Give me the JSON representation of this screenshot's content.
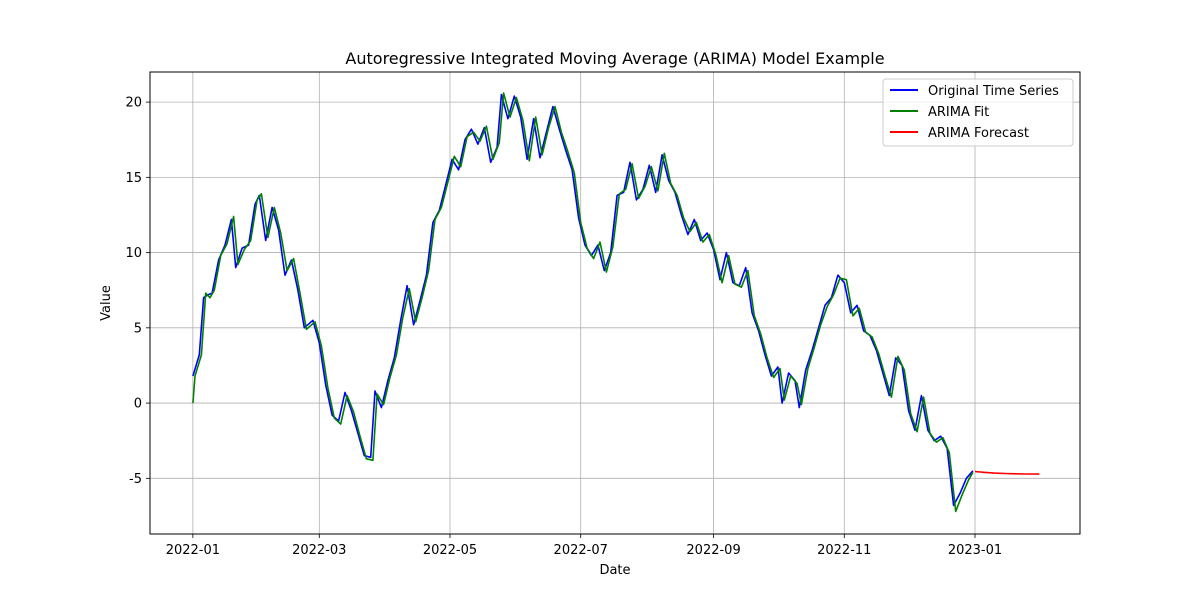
{
  "chart_data": {
    "type": "line",
    "title": "Autoregressive Integrated Moving Average (ARIMA) Model Example",
    "xlabel": "Date",
    "ylabel": "Value",
    "x_tick_labels": [
      "2022-01",
      "2022-03",
      "2022-05",
      "2022-07",
      "2022-09",
      "2022-11",
      "2023-01"
    ],
    "x_tick_dates": [
      "2022-01-01",
      "2022-03-01",
      "2022-05-01",
      "2022-07-01",
      "2022-09-01",
      "2022-11-01",
      "2023-01-01"
    ],
    "y_ticks": [
      -5,
      0,
      5,
      10,
      15,
      20
    ],
    "xlim": [
      "2021-12-12",
      "2023-02-19"
    ],
    "ylim": [
      -8.7,
      22.0
    ],
    "grid": true,
    "legend_position": "top-right",
    "series": [
      {
        "name": "Original Time Series",
        "color": "#0000ff",
        "points": [
          [
            "2022-01-01",
            1.8
          ],
          [
            "2022-01-04",
            3.2
          ],
          [
            "2022-01-06",
            7.0
          ],
          [
            "2022-01-08",
            7.2
          ],
          [
            "2022-01-10",
            7.3
          ],
          [
            "2022-01-13",
            9.5
          ],
          [
            "2022-01-16",
            10.5
          ],
          [
            "2022-01-19",
            12.2
          ],
          [
            "2022-01-21",
            9.0
          ],
          [
            "2022-01-24",
            10.3
          ],
          [
            "2022-01-27",
            10.5
          ],
          [
            "2022-01-30",
            13.2
          ],
          [
            "2022-02-01",
            13.8
          ],
          [
            "2022-02-04",
            10.8
          ],
          [
            "2022-02-07",
            13.0
          ],
          [
            "2022-02-10",
            11.5
          ],
          [
            "2022-02-13",
            8.5
          ],
          [
            "2022-02-16",
            9.5
          ],
          [
            "2022-02-19",
            7.5
          ],
          [
            "2022-02-22",
            5.0
          ],
          [
            "2022-02-26",
            5.5
          ],
          [
            "2022-03-01",
            4.0
          ],
          [
            "2022-03-04",
            1.2
          ],
          [
            "2022-03-07",
            -0.8
          ],
          [
            "2022-03-10",
            -1.2
          ],
          [
            "2022-03-13",
            0.7
          ],
          [
            "2022-03-16",
            -0.5
          ],
          [
            "2022-03-19",
            -2.0
          ],
          [
            "2022-03-22",
            -3.5
          ],
          [
            "2022-03-25",
            -3.6
          ],
          [
            "2022-03-27",
            0.8
          ],
          [
            "2022-03-30",
            -0.3
          ],
          [
            "2022-04-02",
            1.5
          ],
          [
            "2022-04-05",
            3.0
          ],
          [
            "2022-04-08",
            5.5
          ],
          [
            "2022-04-11",
            7.8
          ],
          [
            "2022-04-14",
            5.2
          ],
          [
            "2022-04-17",
            6.8
          ],
          [
            "2022-04-20",
            8.5
          ],
          [
            "2022-04-23",
            12.0
          ],
          [
            "2022-04-26",
            12.8
          ],
          [
            "2022-04-29",
            14.5
          ],
          [
            "2022-05-02",
            16.2
          ],
          [
            "2022-05-05",
            15.5
          ],
          [
            "2022-05-08",
            17.5
          ],
          [
            "2022-05-11",
            18.2
          ],
          [
            "2022-05-14",
            17.2
          ],
          [
            "2022-05-17",
            18.3
          ],
          [
            "2022-05-20",
            16.0
          ],
          [
            "2022-05-23",
            17.0
          ],
          [
            "2022-05-25",
            20.5
          ],
          [
            "2022-05-28",
            18.9
          ],
          [
            "2022-05-31",
            20.4
          ],
          [
            "2022-06-03",
            19.0
          ],
          [
            "2022-06-06",
            16.2
          ],
          [
            "2022-06-09",
            18.9
          ],
          [
            "2022-06-12",
            16.3
          ],
          [
            "2022-06-15",
            18.0
          ],
          [
            "2022-06-18",
            19.7
          ],
          [
            "2022-06-21",
            18.2
          ],
          [
            "2022-06-24",
            16.8
          ],
          [
            "2022-06-27",
            15.5
          ],
          [
            "2022-06-30",
            12.3
          ],
          [
            "2022-07-03",
            10.5
          ],
          [
            "2022-07-06",
            9.8
          ],
          [
            "2022-07-09",
            10.5
          ],
          [
            "2022-07-12",
            8.8
          ],
          [
            "2022-07-15",
            10.0
          ],
          [
            "2022-07-18",
            13.8
          ],
          [
            "2022-07-21",
            14.0
          ],
          [
            "2022-07-24",
            16.0
          ],
          [
            "2022-07-27",
            13.5
          ],
          [
            "2022-07-30",
            14.2
          ],
          [
            "2022-08-02",
            15.8
          ],
          [
            "2022-08-05",
            14.0
          ],
          [
            "2022-08-08",
            16.5
          ],
          [
            "2022-08-11",
            14.8
          ],
          [
            "2022-08-14",
            14.0
          ],
          [
            "2022-08-17",
            12.5
          ],
          [
            "2022-08-20",
            11.2
          ],
          [
            "2022-08-23",
            12.2
          ],
          [
            "2022-08-26",
            10.8
          ],
          [
            "2022-08-29",
            11.3
          ],
          [
            "2022-09-01",
            10.2
          ],
          [
            "2022-09-04",
            8.2
          ],
          [
            "2022-09-07",
            10.0
          ],
          [
            "2022-09-10",
            8.0
          ],
          [
            "2022-09-13",
            7.8
          ],
          [
            "2022-09-16",
            9.0
          ],
          [
            "2022-09-19",
            6.0
          ],
          [
            "2022-09-22",
            4.8
          ],
          [
            "2022-09-25",
            3.2
          ],
          [
            "2022-09-28",
            1.8
          ],
          [
            "2022-10-01",
            2.4
          ],
          [
            "2022-10-03",
            0.0
          ],
          [
            "2022-10-06",
            2.0
          ],
          [
            "2022-10-09",
            1.5
          ],
          [
            "2022-10-11",
            -0.3
          ],
          [
            "2022-10-14",
            2.2
          ],
          [
            "2022-10-17",
            3.5
          ],
          [
            "2022-10-20",
            5.0
          ],
          [
            "2022-10-23",
            6.5
          ],
          [
            "2022-10-26",
            7.0
          ],
          [
            "2022-10-29",
            8.5
          ],
          [
            "2022-11-01",
            8.0
          ],
          [
            "2022-11-04",
            6.0
          ],
          [
            "2022-11-07",
            6.5
          ],
          [
            "2022-11-10",
            4.8
          ],
          [
            "2022-11-13",
            4.5
          ],
          [
            "2022-11-16",
            3.5
          ],
          [
            "2022-11-19",
            2.0
          ],
          [
            "2022-11-22",
            0.5
          ],
          [
            "2022-11-25",
            3.0
          ],
          [
            "2022-11-28",
            2.5
          ],
          [
            "2022-12-01",
            -0.5
          ],
          [
            "2022-12-04",
            -1.8
          ],
          [
            "2022-12-07",
            0.5
          ],
          [
            "2022-12-10",
            -1.8
          ],
          [
            "2022-12-13",
            -2.5
          ],
          [
            "2022-12-16",
            -2.2
          ],
          [
            "2022-12-19",
            -3.0
          ],
          [
            "2022-12-22",
            -6.8
          ],
          [
            "2022-12-25",
            -6.0
          ],
          [
            "2022-12-28",
            -5.0
          ],
          [
            "2022-12-31",
            -4.5
          ]
        ]
      },
      {
        "name": "ARIMA Fit",
        "color": "#008000",
        "points": [
          [
            "2022-01-01",
            0.0
          ],
          [
            "2022-01-02",
            1.8
          ],
          [
            "2022-01-05",
            3.2
          ],
          [
            "2022-01-07",
            7.3
          ],
          [
            "2022-01-09",
            7.0
          ],
          [
            "2022-01-11",
            7.5
          ],
          [
            "2022-01-14",
            9.8
          ],
          [
            "2022-01-17",
            10.6
          ],
          [
            "2022-01-20",
            12.4
          ],
          [
            "2022-01-22",
            9.2
          ],
          [
            "2022-01-25",
            10.2
          ],
          [
            "2022-01-28",
            10.8
          ],
          [
            "2022-01-31",
            13.5
          ],
          [
            "2022-02-02",
            13.9
          ],
          [
            "2022-02-05",
            11.0
          ],
          [
            "2022-02-08",
            13.0
          ],
          [
            "2022-02-11",
            11.3
          ],
          [
            "2022-02-14",
            8.8
          ],
          [
            "2022-02-17",
            9.6
          ],
          [
            "2022-02-20",
            7.3
          ],
          [
            "2022-02-23",
            4.9
          ],
          [
            "2022-02-27",
            5.4
          ],
          [
            "2022-03-02",
            3.8
          ],
          [
            "2022-03-05",
            1.0
          ],
          [
            "2022-03-08",
            -1.0
          ],
          [
            "2022-03-11",
            -1.4
          ],
          [
            "2022-03-14",
            0.5
          ],
          [
            "2022-03-17",
            -0.6
          ],
          [
            "2022-03-20",
            -2.2
          ],
          [
            "2022-03-23",
            -3.7
          ],
          [
            "2022-03-26",
            -3.8
          ],
          [
            "2022-03-28",
            0.6
          ],
          [
            "2022-03-31",
            -0.1
          ],
          [
            "2022-04-03",
            1.7
          ],
          [
            "2022-04-06",
            3.2
          ],
          [
            "2022-04-09",
            5.7
          ],
          [
            "2022-04-12",
            7.6
          ],
          [
            "2022-04-15",
            5.4
          ],
          [
            "2022-04-18",
            7.0
          ],
          [
            "2022-04-21",
            8.8
          ],
          [
            "2022-04-24",
            12.2
          ],
          [
            "2022-04-27",
            13.0
          ],
          [
            "2022-04-30",
            14.7
          ],
          [
            "2022-05-03",
            16.4
          ],
          [
            "2022-05-06",
            15.7
          ],
          [
            "2022-05-09",
            17.7
          ],
          [
            "2022-05-12",
            18.0
          ],
          [
            "2022-05-15",
            17.4
          ],
          [
            "2022-05-18",
            18.4
          ],
          [
            "2022-05-21",
            16.2
          ],
          [
            "2022-05-24",
            17.3
          ],
          [
            "2022-05-26",
            20.6
          ],
          [
            "2022-05-29",
            19.0
          ],
          [
            "2022-06-01",
            20.3
          ],
          [
            "2022-06-04",
            18.8
          ],
          [
            "2022-06-07",
            16.1
          ],
          [
            "2022-06-10",
            19.0
          ],
          [
            "2022-06-13",
            16.5
          ],
          [
            "2022-06-16",
            18.3
          ],
          [
            "2022-06-19",
            19.7
          ],
          [
            "2022-06-22",
            18.0
          ],
          [
            "2022-06-25",
            16.7
          ],
          [
            "2022-06-28",
            15.3
          ],
          [
            "2022-07-01",
            12.0
          ],
          [
            "2022-07-04",
            10.3
          ],
          [
            "2022-07-07",
            9.6
          ],
          [
            "2022-07-10",
            10.7
          ],
          [
            "2022-07-13",
            8.7
          ],
          [
            "2022-07-16",
            10.4
          ],
          [
            "2022-07-19",
            13.9
          ],
          [
            "2022-07-22",
            14.2
          ],
          [
            "2022-07-25",
            15.9
          ],
          [
            "2022-07-28",
            13.6
          ],
          [
            "2022-07-31",
            14.4
          ],
          [
            "2022-08-03",
            15.7
          ],
          [
            "2022-08-06",
            14.1
          ],
          [
            "2022-08-09",
            16.6
          ],
          [
            "2022-08-12",
            14.6
          ],
          [
            "2022-08-15",
            13.8
          ],
          [
            "2022-08-18",
            12.3
          ],
          [
            "2022-08-21",
            11.4
          ],
          [
            "2022-08-24",
            12.0
          ],
          [
            "2022-08-27",
            10.7
          ],
          [
            "2022-08-30",
            11.2
          ],
          [
            "2022-09-02",
            9.9
          ],
          [
            "2022-09-05",
            8.0
          ],
          [
            "2022-09-08",
            9.8
          ],
          [
            "2022-09-11",
            7.9
          ],
          [
            "2022-09-14",
            7.7
          ],
          [
            "2022-09-17",
            8.8
          ],
          [
            "2022-09-20",
            5.8
          ],
          [
            "2022-09-23",
            4.6
          ],
          [
            "2022-09-26",
            3.0
          ],
          [
            "2022-09-29",
            1.7
          ],
          [
            "2022-10-02",
            2.3
          ],
          [
            "2022-10-04",
            0.2
          ],
          [
            "2022-10-07",
            1.8
          ],
          [
            "2022-10-10",
            1.3
          ],
          [
            "2022-10-12",
            -0.1
          ],
          [
            "2022-10-15",
            2.3
          ],
          [
            "2022-10-18",
            3.7
          ],
          [
            "2022-10-21",
            5.2
          ],
          [
            "2022-10-24",
            6.4
          ],
          [
            "2022-10-27",
            7.2
          ],
          [
            "2022-10-30",
            8.3
          ],
          [
            "2022-11-02",
            8.2
          ],
          [
            "2022-11-05",
            5.8
          ],
          [
            "2022-11-08",
            6.3
          ],
          [
            "2022-11-11",
            4.7
          ],
          [
            "2022-11-14",
            4.4
          ],
          [
            "2022-11-17",
            3.3
          ],
          [
            "2022-11-20",
            1.8
          ],
          [
            "2022-11-23",
            0.4
          ],
          [
            "2022-11-26",
            3.1
          ],
          [
            "2022-11-29",
            2.2
          ],
          [
            "2022-12-02",
            -0.7
          ],
          [
            "2022-12-05",
            -1.9
          ],
          [
            "2022-12-08",
            0.4
          ],
          [
            "2022-12-11",
            -2.0
          ],
          [
            "2022-12-14",
            -2.6
          ],
          [
            "2022-12-17",
            -2.3
          ],
          [
            "2022-12-20",
            -3.3
          ],
          [
            "2022-12-23",
            -7.2
          ],
          [
            "2022-12-26",
            -6.1
          ],
          [
            "2022-12-29",
            -5.1
          ],
          [
            "2022-12-31",
            -4.6
          ]
        ]
      },
      {
        "name": "ARIMA Forecast",
        "color": "#ff0000",
        "points": [
          [
            "2023-01-01",
            -4.55
          ],
          [
            "2023-01-05",
            -4.6
          ],
          [
            "2023-01-10",
            -4.65
          ],
          [
            "2023-01-15",
            -4.68
          ],
          [
            "2023-01-20",
            -4.7
          ],
          [
            "2023-01-25",
            -4.71
          ],
          [
            "2023-01-31",
            -4.72
          ]
        ]
      }
    ]
  }
}
